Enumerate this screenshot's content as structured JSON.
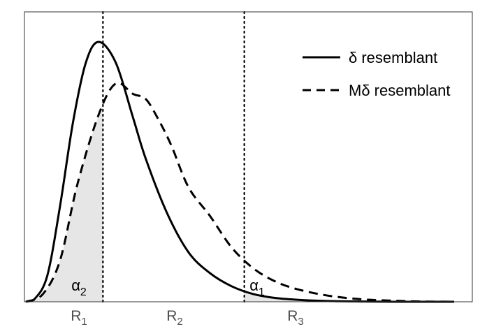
{
  "chart_data": {
    "type": "line",
    "title": "",
    "xlabel": "",
    "ylabel": "",
    "x_range": [
      0,
      1
    ],
    "y_range": [
      0,
      1
    ],
    "grid": false,
    "legend": {
      "placement": "top-right",
      "entries": [
        {
          "label": "δ resemblant",
          "style": "solid"
        },
        {
          "label": "Mδ resemblant",
          "style": "dashed"
        }
      ]
    },
    "series": [
      {
        "name": "δ resemblant",
        "style": "solid",
        "color": "#000000",
        "x": [
          0.0,
          0.02,
          0.05,
          0.08,
          0.11,
          0.14,
          0.17,
          0.21,
          0.25,
          0.28,
          0.33,
          0.38,
          0.43,
          0.48,
          0.53,
          0.58,
          0.63,
          0.7,
          0.78,
          0.86,
          0.92,
          1.0
        ],
        "y": [
          0.0,
          0.01,
          0.1,
          0.37,
          0.69,
          0.92,
          1.0,
          0.92,
          0.71,
          0.55,
          0.34,
          0.19,
          0.11,
          0.06,
          0.03,
          0.015,
          0.008,
          0.003,
          0.001,
          0.0,
          0.0,
          0.0
        ]
      },
      {
        "name": "Mδ resemblant",
        "style": "dashed",
        "color": "#000000",
        "x": [
          0.0,
          0.04,
          0.08,
          0.12,
          0.17,
          0.21,
          0.25,
          0.28,
          0.31,
          0.34,
          0.38,
          0.43,
          0.48,
          0.53,
          0.58,
          0.63,
          0.7,
          0.78,
          0.86,
          0.92,
          1.0
        ],
        "y": [
          0.0,
          0.03,
          0.16,
          0.45,
          0.72,
          0.84,
          0.8,
          0.78,
          0.7,
          0.6,
          0.44,
          0.33,
          0.21,
          0.13,
          0.08,
          0.05,
          0.025,
          0.01,
          0.004,
          0.001,
          0.0
        ]
      }
    ],
    "vertical_lines": [
      {
        "x": 0.18,
        "style": "dotted"
      },
      {
        "x": 0.51,
        "style": "dotted"
      }
    ],
    "regions": [
      {
        "label": "R",
        "sub": "1",
        "x_center": 0.12
      },
      {
        "label": "R",
        "sub": "2",
        "x_center": 0.35
      },
      {
        "label": "R",
        "sub": "3",
        "x_center": 0.62
      }
    ],
    "shaded_areas": [
      {
        "label": "α",
        "sub": "2",
        "series": "Mδ resemblant",
        "x_from": 0.0,
        "x_to": 0.18,
        "color": "#e6e6e6"
      },
      {
        "label": "α",
        "sub": "1",
        "series": "δ resemblant",
        "x_from": 0.51,
        "x_to": 1.0,
        "color": "#e6e6e6"
      }
    ]
  }
}
